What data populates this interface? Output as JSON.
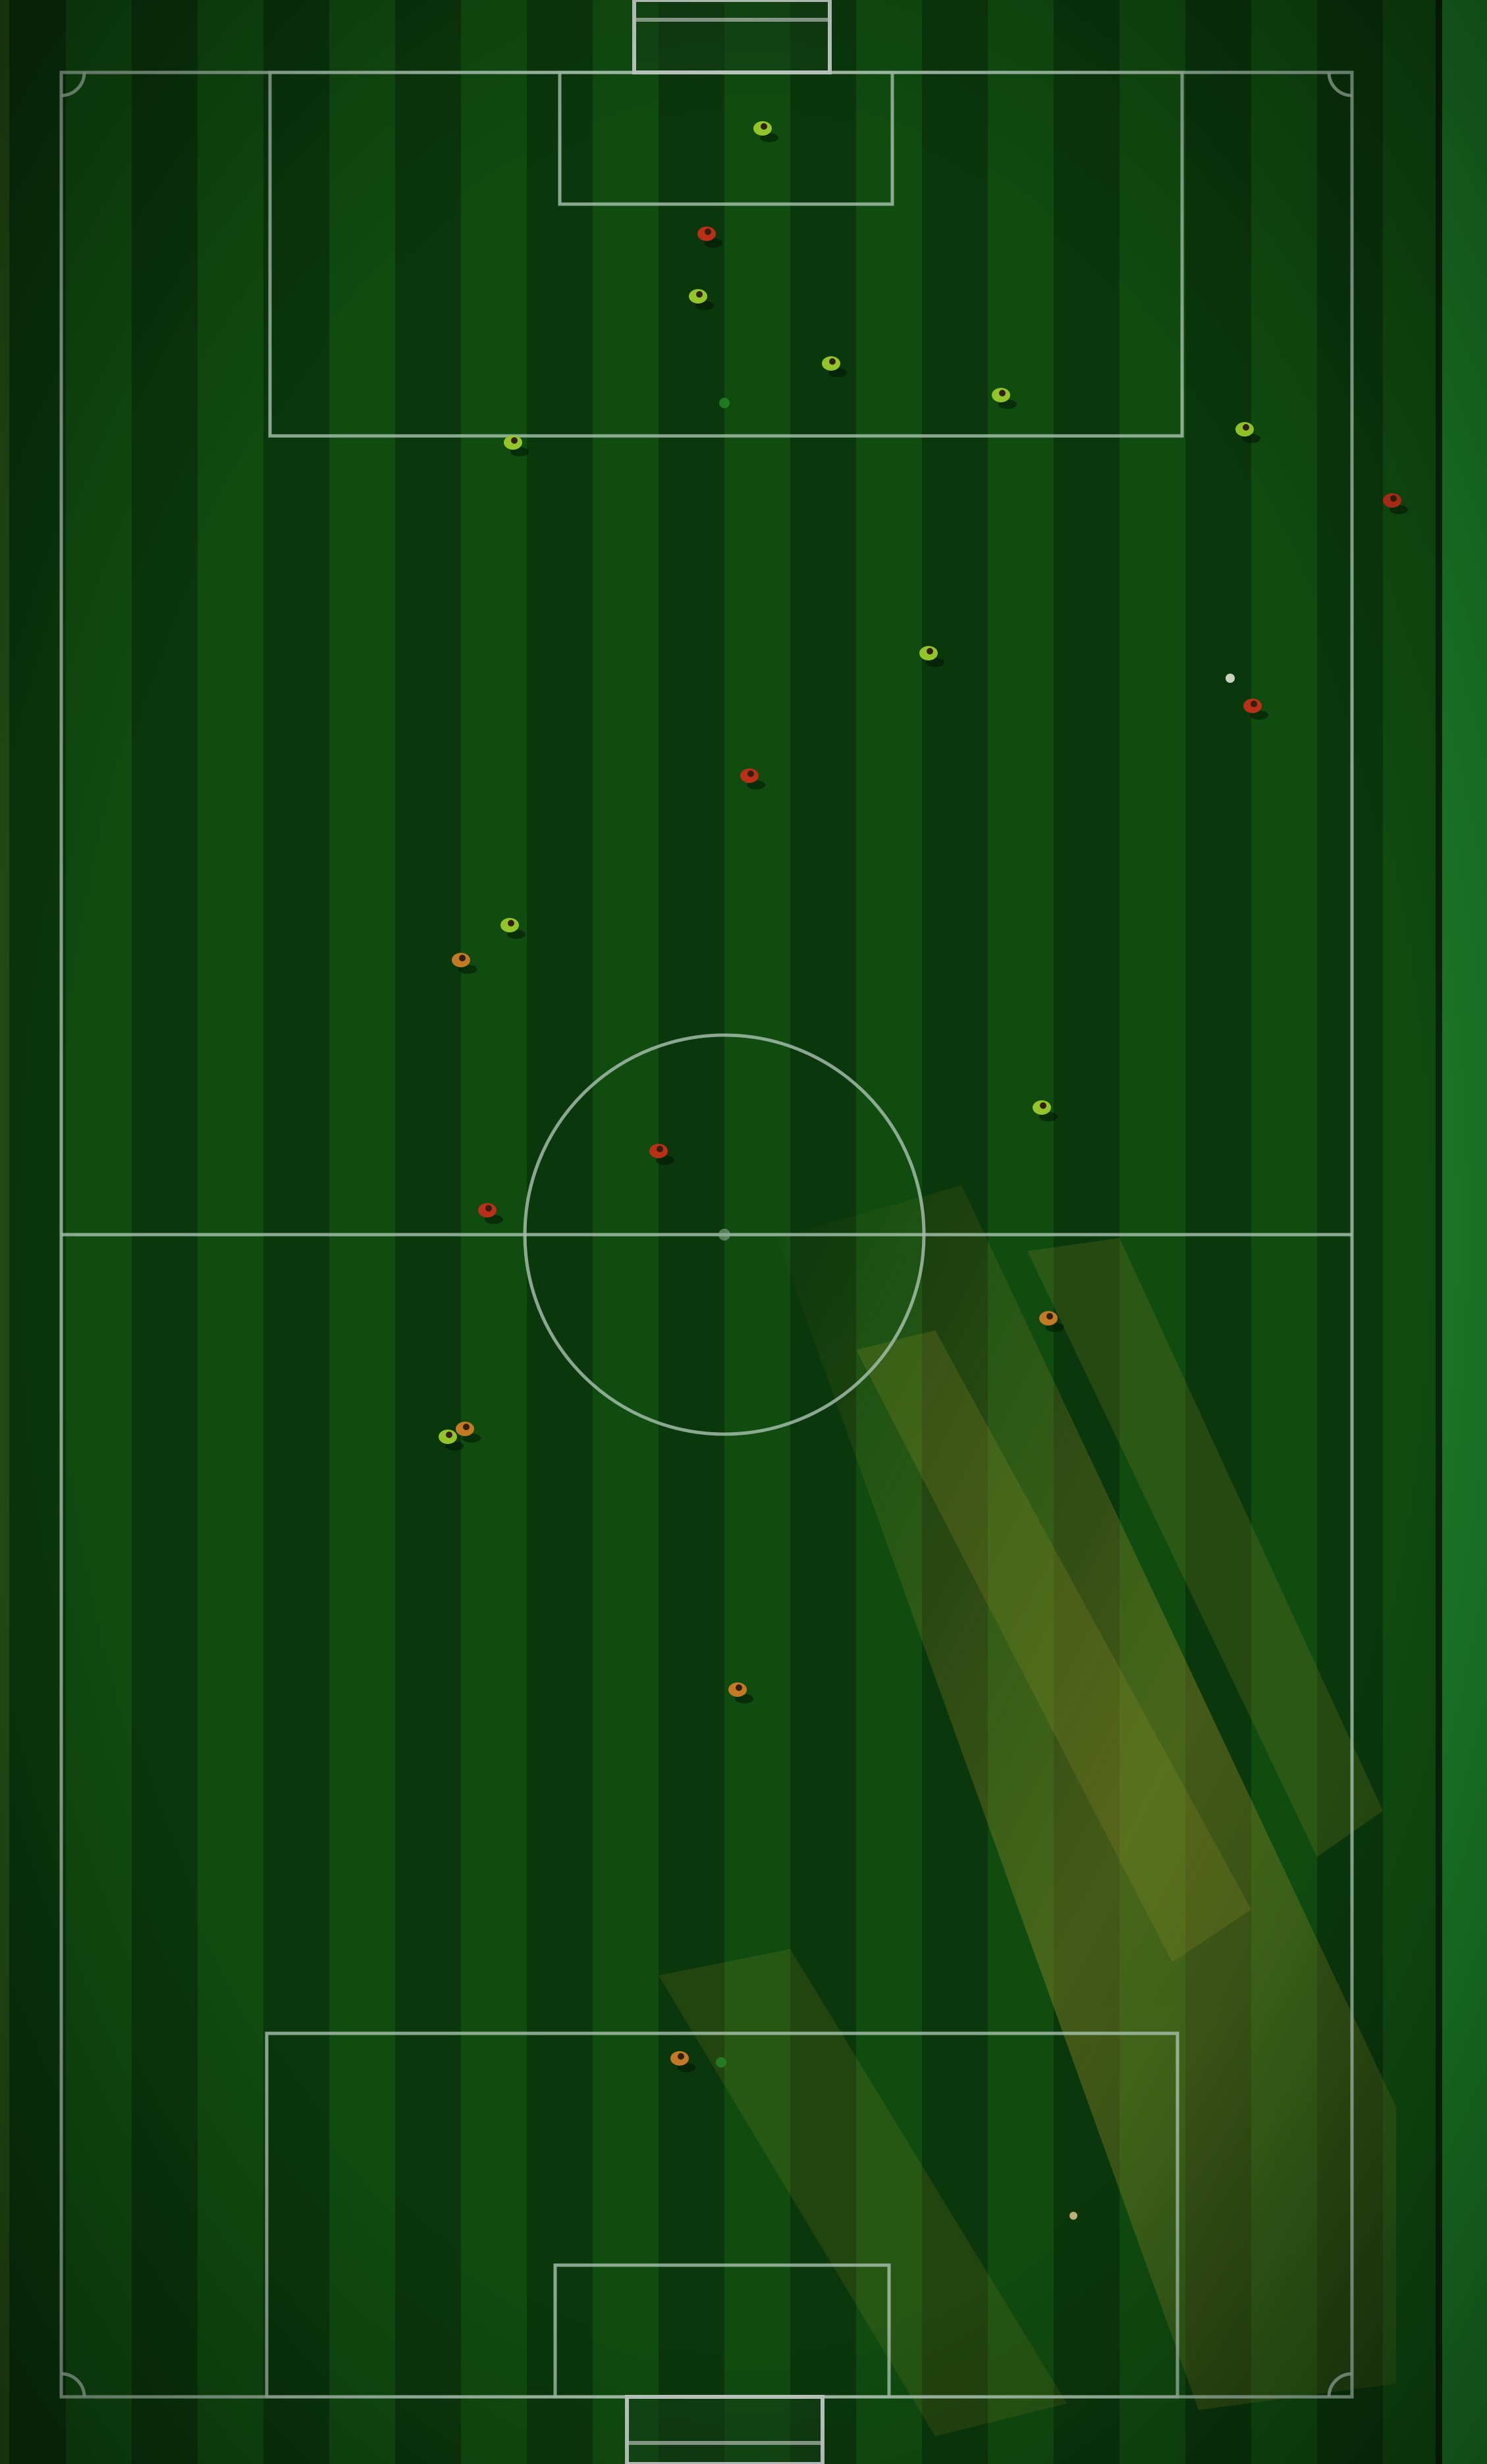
{
  "scene": {
    "subject": "aerial-soccer-pitch",
    "colors": {
      "grass_dark": "#0d3f0e",
      "grass_mid": "#145a14",
      "grass_light": "#1f7a1c",
      "sunlit_grass": "#8a8a22",
      "line": "#b9d7c0",
      "hedge": "#1f8a2c",
      "team_red": "#d4361c",
      "team_lime": "#a8e030",
      "team_orange": "#e08a2a"
    },
    "players": [
      {
        "team": "team_lime"
      },
      {
        "team": "team_red"
      },
      {
        "team": "team_lime"
      },
      {
        "team": "team_lime"
      },
      {
        "team": "team_lime"
      },
      {
        "team": "team_lime"
      },
      {
        "team": "team_lime"
      },
      {
        "team": "team_red"
      },
      {
        "team": "team_lime"
      },
      {
        "team": "team_red"
      },
      {
        "team": "team_red"
      },
      {
        "team": "team_lime"
      },
      {
        "team": "team_orange"
      },
      {
        "team": "team_lime"
      },
      {
        "team": "team_red"
      },
      {
        "team": "team_red"
      },
      {
        "team": "team_orange"
      },
      {
        "team": "team_lime"
      },
      {
        "team": "team_orange"
      },
      {
        "team": "team_orange"
      },
      {
        "team": "team_orange"
      }
    ]
  }
}
